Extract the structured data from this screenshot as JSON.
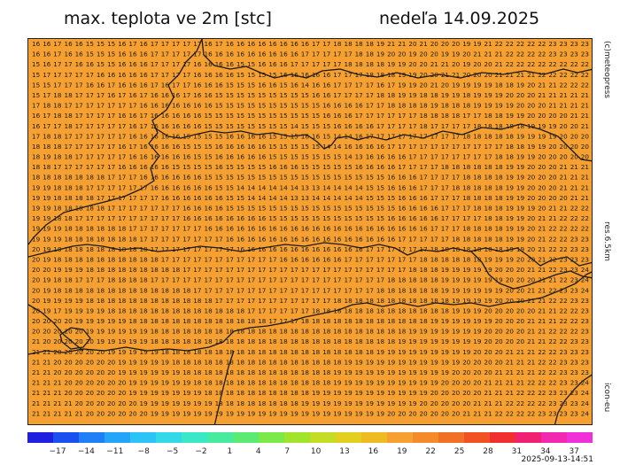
{
  "title_left": "max. teplota ve 2m [stc]",
  "title_right": "nedeľa 14.09.2025",
  "credit": "(c)meteopress",
  "resolution": "res.6.5km",
  "model": "icon-eu",
  "timestamp": "2025-09-13-14:51",
  "colors": {
    "map_fill": "#f5a031",
    "border_line": "#1a1a1a",
    "value_text": "#1a1a1a"
  },
  "colorbar": {
    "colors": [
      "#1f1fe0",
      "#1a4ff0",
      "#1f7ff6",
      "#24a5f8",
      "#2cc4f6",
      "#33d9e6",
      "#3ae8c8",
      "#46eba0",
      "#5ceb72",
      "#7bea48",
      "#a0e52c",
      "#c4dd24",
      "#e2cf20",
      "#efbb22",
      "#f5a031",
      "#f48a2a",
      "#f27026",
      "#f05222",
      "#f03030",
      "#f22070",
      "#f228b0",
      "#f030d8"
    ],
    "labels": [
      "−17",
      "−14",
      "−11",
      "−8",
      "−5",
      "−2",
      "1",
      "4",
      "7",
      "10",
      "13",
      "16",
      "19",
      "22",
      "25",
      "28",
      "31",
      "34",
      "37"
    ]
  },
  "grid": {
    "rows": [
      "16 16 17 16 16 15 15 15 16 17 16 17 17 17 17 17 16 17 16 16 16 16 16 16 16 16 17 17 18 18 18 18 19 21 21 20 21 20 20 20 19 19 21 22 22 22 22 22 23 23 23 23",
      "16 16 17 16 16 15 15 15 16 16 16 17 17 17 17 17 16 16 16 16 16 16 16 16 16 17 17 17 17 17 18 18 19 20 20 19 20 20 19 19 20 21 21 21 22 22 22 22 23 23 23 23",
      "15 16 17 17 16 16 15 15 16 16 16 17 17 17 17 16 16 16 16 15 15 16 16 16 17 17 17 17 17 18 18 18 18 19 19 20 20 21 21 20 19 20 20 21 22 22 22 22 22 22 22 22",
      "15 17 17 17 17 17 16 16 16 16 16 17 17 17 17 16 16 16 16 15 15 15 15 16 16 16 16 16 17 17 17 18 18 18 19 19 20 20 21 21 20 20 20 21 21 21 21 22 22 22 22 22",
      "15 15 17 17 17 16 16 17 16 16 16 17 16 17 17 16 16 16 15 15 15 16 16 15 16 14 16 16 17 17 17 17 16 17 19 19 20 21 20 19 19 19 19 18 18 19 20 21 21 22 22 22",
      "15 17 18 18 17 17 17 16 17 16 17 16 16 16 17 16 16 15 15 15 15 15 15 15 15 15 16 16 17 17 17 17 18 18 19 19 18 18 19 19 18 19 19 19 20 20 20 21 21 21 21 21",
      "17 18 18 17 17 17 17 17 17 17 16 16 16 16 16 16 16 15 15 15 15 15 15 15 15 15 15 16 16 16 16 17 17 18 18 18 18 19 18 18 18 19 19 19 19 20 20 20 21 21 21 21",
      "16 17 18 18 17 17 17 17 16 16 17 16 16 16 16 16 15 15 15 15 15 15 15 15 15 15 15 16 16 16 17 17 17 17 17 17 18 18 18 18 17 17 18 18 19 19 20 20 20 20 21 21",
      "16 17 17 18 17 17 17 17 17 16 17 16 16 16 16 16 15 15 15 15 15 15 15 15 14 15 15 15 16 16 16 16 17 17 17 17 18 17 17 17 17 18 18 18 18 18 19 19 19 20 20 21",
      "17 18 18 17 17 17 17 17 17 16 16 16 16 16 15 15 15 15 16 16 16 16 15 15 15 16 16 15 14 14 16 17 17 17 17 17 17 17 17 17 18 18 18 18 18 19 19 19 19 20 20 20",
      "18 18 18 17 17 17 17 17 16 17 16 16 16 16 15 15 15 16 16 16 16 16 15 15 15 15 15 14 14 16 16 16 16 17 17 17 17 17 17 17 17 17 17 17 18 18 19 19 20 20 20 20",
      "18 19 18 18 17 17 17 17 17 16 16 16 16 16 16 15 15 16 16 16 16 16 15 15 15 15 15 15 15 14 13 16 16 16 16 17 17 17 17 17 17 17 17 18 18 19 19 20 20 20 20 20",
      "18 18 17 17 17 17 17 17 16 16 16 16 16 15 15 15 15 16 15 15 15 15 16 16 16 15 15 15 15 15 16 16 16 16 17 17 17 17 18 18 18 18 18 18 19 19 20 20 20 21 21 21",
      "18 18 18 18 18 18 18 17 17 17 16 16 16 16 16 16 15 15 15 15 15 15 15 15 15 15 15 15 15 15 15 15 15 16 16 16 17 17 17 17 18 18 18 18 19 19 20 20 20 21 21 21",
      "19 19 18 18 18 17 17 17 17 17 17 16 16 16 16 16 16 15 15 14 14 14 14 14 14 13 13 14 14 14 14 15 15 16 16 16 17 17 17 18 18 18 18 18 19 19 20 20 20 21 21 21",
      "19 19 18 18 18 18 17 17 17 17 17 17 16 16 16 16 16 16 15 15 14 14 14 14 13 13 14 14 14 14 14 15 15 15 16 16 16 17 17 17 18 18 18 18 19 19 20 20 20 20 21 21",
      "19 19 18 18 18 18 18 17 17 17 17 17 17 17 16 16 16 16 15 15 15 15 15 15 15 15 15 15 15 15 15 15 15 15 16 16 16 16 17 17 17 18 18 18 19 19 19 20 21 21 22 22",
      "19 19 18 18 17 17 17 17 17 17 17 17 17 17 16 16 16 16 16 16 16 16 15 15 15 15 15 15 15 15 15 15 15 16 16 16 16 16 17 17 17 17 18 18 19 19 20 21 21 22 22 22",
      "19 19 19 18 18 18 18 18 18 17 17 17 17 17 17 17 16 16 16 16 16 16 16 16 16 16 16 16 16 16 16 16 16 16 16 16 16 17 17 17 18 18 18 18 19 19 20 21 22 22 22 22",
      "19 19 19 18 18 18 18 18 18 18 17 17 17 17 17 17 17 17 16 16 16 16 16 16 16 16 16 16 16 16 16 16 16 16 17 17 17 17 17 18 18 18 18 18 19 19 20 21 22 22 23 23",
      "20 19 18 18 18 18 18 18 18 18 18 17 17 17 17 17 17 17 17 16 16 16 16 16 16 16 16 16 16 16 16 17 17 17 17 17 17 18 18 18 18 18 18 18 19 19 20 21 22 22 23 23",
      "20 19 18 18 18 18 18 18 18 18 18 18 17 17 17 17 17 17 17 17 17 17 17 16 16 16 16 16 16 17 17 17 17 17 17 17 18 18 18 18 18 18 19 19 19 20 20 21 22 23 23 23",
      "20 20 19 19 19 18 18 18 18 18 18 18 18 18 17 17 17 17 17 17 17 17 17 17 17 17 17 17 17 17 17 17 17 17 17 18 18 18 19 19 19 19 19 20 20 20 21 21 22 23 23 24",
      "20 19 18 18 17 17 17 18 18 18 18 17 17 17 17 17 17 17 17 17 17 17 17 17 17 17 17 17 17 17 17 17 17 18 18 18 18 18 19 19 19 19 19 19 20 20 20 21 21 22 23 24",
      "20 19 18 18 18 18 18 18 18 18 18 18 18 18 18 17 17 17 17 17 17 17 17 17 17 17 17 17 17 17 17 17 18 18 18 18 18 18 19 19 19 19 19 19 20 20 21 21 22 23 23 24",
      "20 19 19 19 19 18 18 18 18 18 18 18 18 18 18 18 18 17 17 17 17 17 17 17 17 17 17 17 18 18 18 18 18 18 18 18 18 18 18 19 19 19 19 20 20 20 21 21 22 22 23 23",
      "20 19 17 19 19 19 19 18 18 18 18 18 18 18 18 18 18 18 18 18 17 17 17 17 17 17 18 18 18 18 18 18 18 18 18 18 18 18 18 19 19 19 20 20 20 20 20 21 21 22 22 23",
      "20 20 20 20 19 19 19 19 19 18 18 18 18 18 18 18 18 18 18 18 18 18 17 17 17 18 18 18 18 18 18 18 18 18 18 18 18 19 19 19 19 19 19 20 20 20 21 21 21 22 22 23",
      "20 20 20 20 20 19 19 19 19 19 19 18 18 18 18 18 18 18 18 18 18 18 18 18 18 18 18 18 18 18 18 18 18 18 18 19 19 19 19 19 19 19 20 20 20 20 21 21 22 22 22 23",
      "21 20 20 20 20 20 19 19 19 19 19 18 18 18 18 18 18 18 18 18 18 18 18 18 18 18 18 18 18 18 18 18 18 18 19 19 19 19 19 19 19 19 20 20 20 20 21 21 22 22 23 23",
      "21 21 20 20 20 20 20 19 19 19 19 19 18 18 18 18 18 18 18 18 18 18 18 18 18 18 18 18 18 18 18 18 19 19 19 19 19 19 19 19 19 20 20 20 21 21 21 22 22 23 23 23",
      "21 21 20 20 20 20 20 20 19 19 19 19 19 18 18 18 18 18 18 18 18 18 18 18 18 18 18 18 18 19 19 19 19 19 19 19 19 19 19 19 20 20 20 20 21 21 21 22 22 23 23 23",
      "21 21 20 20 20 20 20 20 19 19 19 19 19 19 18 18 18 18 18 18 18 18 18 18 18 18 18 18 19 19 19 19 19 19 19 19 19 19 19 20 20 20 20 21 21 21 21 22 22 23 23 23",
      "21 21 21 20 20 20 20 20 20 19 19 19 19 19 19 18 18 18 18 18 18 18 18 18 18 18 18 18 19 19 19 19 19 19 19 19 19 19 20 20 20 20 21 21 21 21 22 22 22 23 23 24",
      "21 21 21 20 20 20 20 20 20 19 19 19 19 19 19 19 18 18 18 18 18 18 18 18 18 18 19 19 19 19 19 19 19 19 19 19 19 20 20 20 20 20 21 21 21 22 22 22 23 23 23 24",
      "21 21 21 21 20 20 20 20 20 20 19 19 19 19 19 19 19 18 18 18 18 18 18 18 18 19 19 19 19 19 19 19 19 19 19 19 20 20 20 20 20 21 21 21 22 22 22 22 23 23 23 24",
      "21 21 21 21 21 20 20 20 20 20 20 19 19 19 19 19 19 19 19 19 19 19 19 19 19 19 19 19 19 19 19 19 19 20 20 20 20 20 20 20 21 21 21 22 22 22 22 23 23 23 23 24"
    ]
  }
}
